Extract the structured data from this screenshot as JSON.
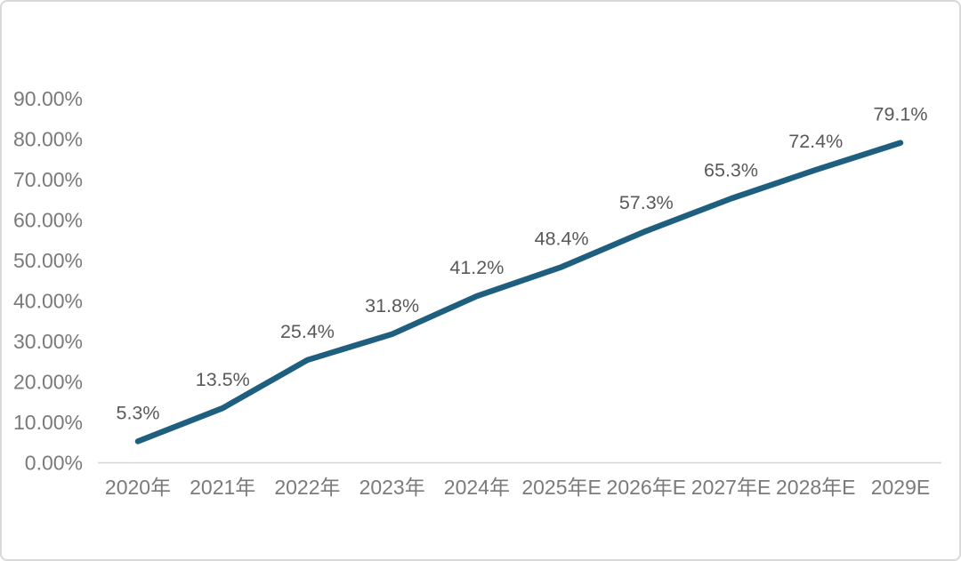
{
  "page": {
    "background_color": "#ffffff",
    "border_color": "#d9d9d9"
  },
  "chart_data": {
    "type": "line",
    "title": "",
    "subtitle": "",
    "xlabel": "",
    "ylabel": "",
    "categories": [
      "2020年",
      "2021年",
      "2022年",
      "2023年",
      "2024年",
      "2025年E",
      "2026年E",
      "2027年E",
      "2028年E",
      "2029E"
    ],
    "series": [
      {
        "name": "penetration-rate",
        "values": [
          5.3,
          13.5,
          25.4,
          31.8,
          41.2,
          48.4,
          57.3,
          65.3,
          72.4,
          79.1
        ]
      }
    ],
    "data_labels": [
      "5.3%",
      "13.5%",
      "25.4%",
      "31.8%",
      "41.2%",
      "48.4%",
      "57.3%",
      "65.3%",
      "72.4%",
      "79.1%"
    ],
    "y_ticks": [
      "0.00%",
      "10.00%",
      "20.00%",
      "30.00%",
      "40.00%",
      "50.00%",
      "60.00%",
      "70.00%",
      "80.00%",
      "90.00%"
    ],
    "y_tick_values": [
      0,
      10,
      20,
      30,
      40,
      50,
      60,
      70,
      80,
      90
    ],
    "ylim": [
      0,
      90
    ],
    "grid": false,
    "legend_position": "none",
    "colors": {
      "line": "#1e5f7f",
      "axis_line": "#d6d6d6",
      "axis_label": "#7a7a7a",
      "data_label": "#595959"
    }
  }
}
